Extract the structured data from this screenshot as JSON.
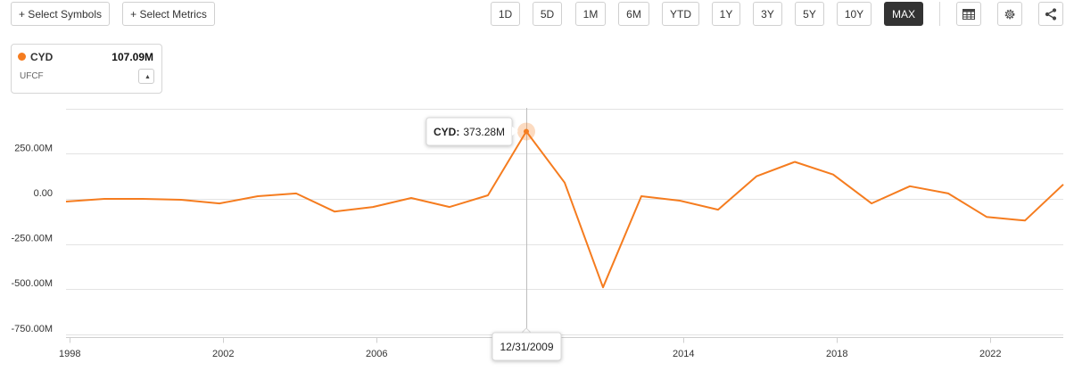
{
  "toolbar": {
    "select_symbols": "+ Select Symbols",
    "select_metrics": "+ Select Metrics",
    "ranges": [
      "1D",
      "5D",
      "1M",
      "6M",
      "YTD",
      "1Y",
      "3Y",
      "5Y",
      "10Y",
      "MAX"
    ],
    "active_range": "MAX",
    "icons": [
      "table-icon",
      "gear-icon",
      "share-icon"
    ]
  },
  "legend": {
    "symbol": "CYD",
    "value": "107.09M",
    "metric": "UFCF",
    "color": "#f57c1f"
  },
  "tooltip": {
    "label": "CYD:",
    "value": "373.28M",
    "date": "12/31/2009"
  },
  "chart_data": {
    "type": "line",
    "series": [
      {
        "name": "CYD",
        "color": "#f57c1f",
        "x": [
          1997.9,
          1998.9,
          1999.9,
          2000.9,
          2001.9,
          2002.9,
          2003.9,
          2004.9,
          2005.9,
          2006.9,
          2007.9,
          2008.9,
          2009.9,
          2010.9,
          2011.9,
          2012.9,
          2013.9,
          2014.9,
          2015.9,
          2016.9,
          2017.9,
          2018.9,
          2019.9,
          2020.9,
          2021.9,
          2022.9,
          2023.9
        ],
        "y": [
          -15,
          0,
          0,
          -5,
          -25,
          15,
          30,
          -70,
          -45,
          5,
          -45,
          20,
          373.28,
          90,
          -490,
          15,
          -10,
          -60,
          125,
          205,
          135,
          -25,
          70,
          30,
          -100,
          -120,
          80
        ]
      }
    ],
    "highlight": {
      "x": 2009.9,
      "y": 373.28
    },
    "yticks": [
      250,
      0,
      -250,
      -500,
      -750
    ],
    "ytick_labels": [
      "250.00M",
      "0.00",
      "-250.00M",
      "-500.00M",
      "-750.00M"
    ],
    "xticks": [
      1998,
      2002,
      2006,
      2014,
      2018,
      2022
    ],
    "xtick_labels": [
      "1998",
      "2002",
      "2006",
      "2014",
      "2018",
      "2022"
    ],
    "xlim": [
      1997.9,
      2023.9
    ],
    "ylim": [
      -750,
      500
    ],
    "grid": true,
    "legend_position": "top-left"
  }
}
